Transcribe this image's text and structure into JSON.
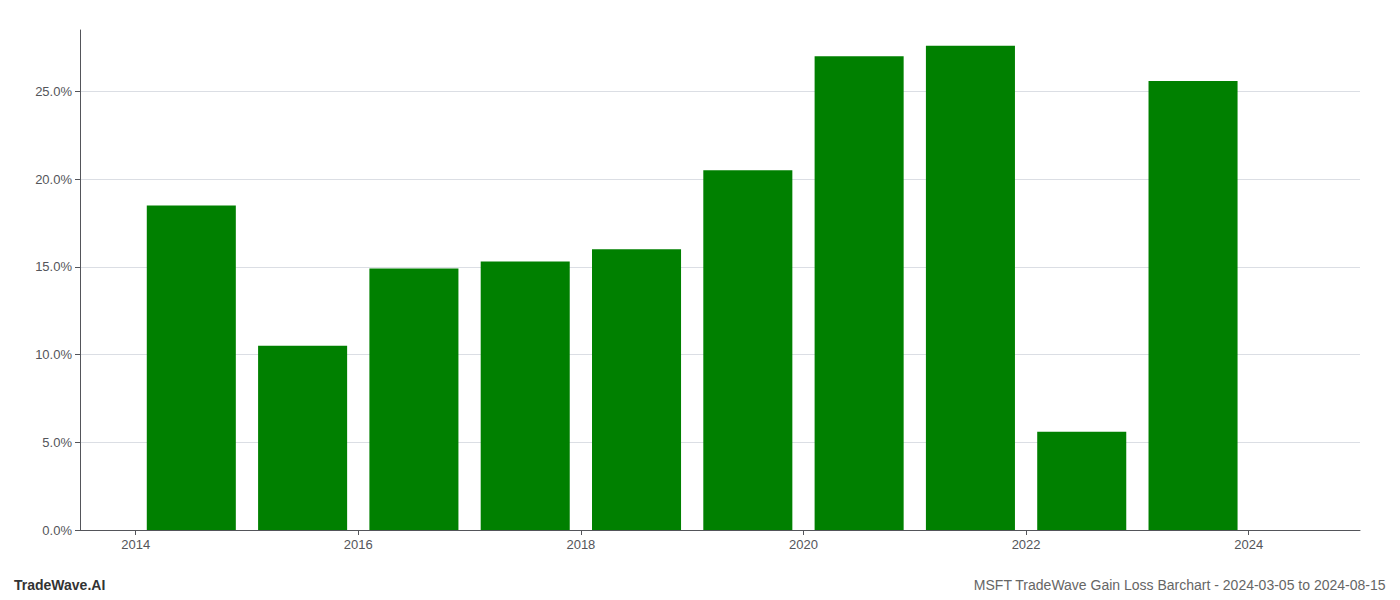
{
  "chart_data": {
    "type": "bar",
    "x": [
      2014,
      2015,
      2016,
      2017,
      2018,
      2019,
      2020,
      2021,
      2022,
      2023
    ],
    "values": [
      0.185,
      0.105,
      0.149,
      0.153,
      0.16,
      0.205,
      0.27,
      0.276,
      0.056,
      0.256
    ],
    "color": "#008000",
    "xlim": [
      2013.0,
      2024.5
    ],
    "xticks": [
      {
        "value": 2013.5,
        "label": "2014"
      },
      {
        "value": 2015.5,
        "label": "2016"
      },
      {
        "value": 2017.5,
        "label": "2018"
      },
      {
        "value": 2019.5,
        "label": "2020"
      },
      {
        "value": 2021.5,
        "label": "2022"
      },
      {
        "value": 2023.5,
        "label": "2024"
      }
    ],
    "ylim": [
      0,
      0.285
    ],
    "yticks": [
      {
        "value": 0.0,
        "label": "0.0%"
      },
      {
        "value": 0.05,
        "label": "5.0%"
      },
      {
        "value": 0.1,
        "label": "10.0%"
      },
      {
        "value": 0.15,
        "label": "15.0%"
      },
      {
        "value": 0.2,
        "label": "20.0%"
      },
      {
        "value": 0.25,
        "label": "25.0%"
      }
    ],
    "grid": true,
    "annotations": [
      "TradeWave.AI",
      "MSFT TradeWave Gain Loss Barchart - 2024-03-05 to 2024-08-15"
    ]
  }
}
